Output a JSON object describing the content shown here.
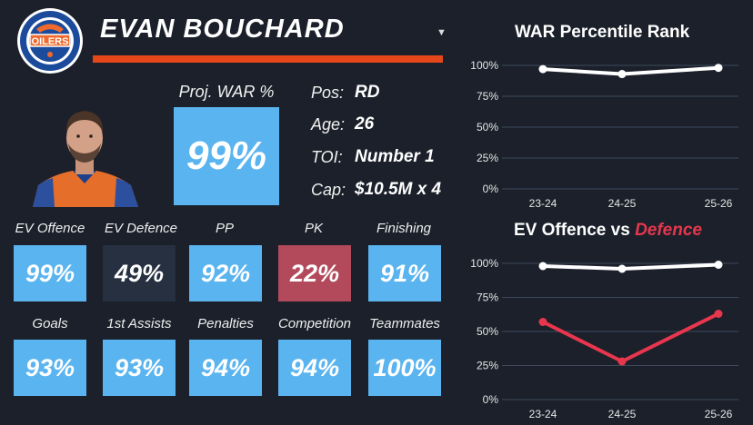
{
  "header": {
    "player_name": "EVAN BOUCHARD",
    "logo_text": "OILERS"
  },
  "colors": {
    "background": "#1b202a",
    "orange": "#e5471b",
    "blue": "#5ab4ef",
    "navy": "#273040",
    "maroon": "#b34a5c",
    "red": "#e8364d"
  },
  "icons": {
    "dropdown": "caret-down-icon",
    "logo": "oilers-logo"
  },
  "proj_war": {
    "label": "Proj. WAR %",
    "value": "99%"
  },
  "info": [
    {
      "key": "Pos:",
      "value": "RD"
    },
    {
      "key": "Age:",
      "value": "26"
    },
    {
      "key": "TOI:",
      "value": "Number 1"
    },
    {
      "key": "Cap:",
      "value": "$10.5M x 4"
    }
  ],
  "stats_row1": [
    {
      "label": "EV Offence",
      "value": "99%",
      "color": "#5ab4ef"
    },
    {
      "label": "EV Defence",
      "value": "49%",
      "color": "#273040"
    },
    {
      "label": "PP",
      "value": "92%",
      "color": "#5ab4ef"
    },
    {
      "label": "PK",
      "value": "22%",
      "color": "#b34a5c"
    },
    {
      "label": "Finishing",
      "value": "91%",
      "color": "#5ab4ef"
    }
  ],
  "stats_row2": [
    {
      "label": "Goals",
      "value": "93%",
      "color": "#5ab4ef"
    },
    {
      "label": "1st Assists",
      "value": "93%",
      "color": "#5ab4ef"
    },
    {
      "label": "Penalties",
      "value": "94%",
      "color": "#5ab4ef"
    },
    {
      "label": "Competition",
      "value": "94%",
      "color": "#5ab4ef"
    },
    {
      "label": "Teammates",
      "value": "100%",
      "color": "#5ab4ef"
    }
  ],
  "chart_data": [
    {
      "type": "line",
      "title": "WAR Percentile Rank",
      "categories": [
        "23-24",
        "24-25",
        "25-26"
      ],
      "ylim": [
        0,
        100
      ],
      "yticks": [
        "0%",
        "25%",
        "50%",
        "75%",
        "100%"
      ],
      "grid": true,
      "series": [
        {
          "values": [
            97,
            93,
            98
          ],
          "color": "#ffffff"
        }
      ]
    },
    {
      "type": "line",
      "title_part1": "EV Offence vs ",
      "title_part2": "Defence",
      "categories": [
        "23-24",
        "24-25",
        "25-26"
      ],
      "ylim": [
        0,
        100
      ],
      "yticks": [
        "0%",
        "25%",
        "50%",
        "75%",
        "100%"
      ],
      "grid": true,
      "series": [
        {
          "values": [
            98,
            96,
            99
          ],
          "color": "#ffffff"
        },
        {
          "values": [
            57,
            28,
            63
          ],
          "color": "#e8364d"
        }
      ]
    }
  ]
}
